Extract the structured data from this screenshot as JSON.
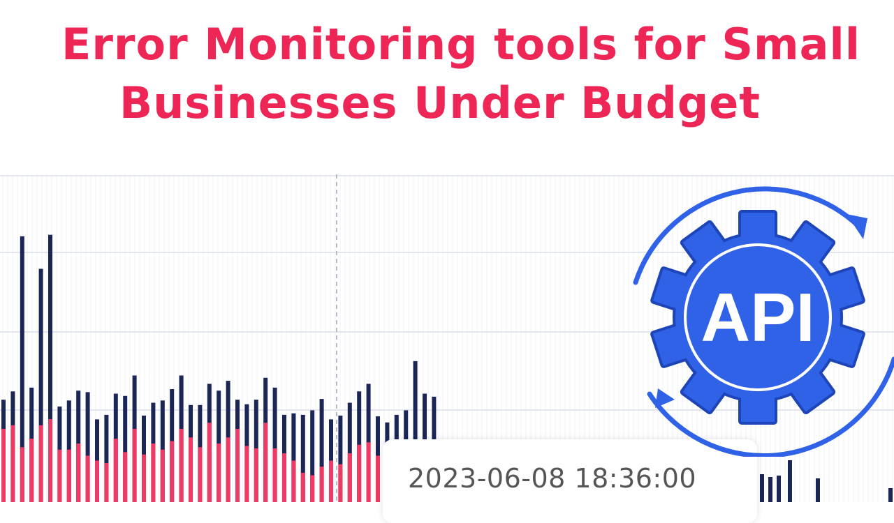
{
  "title": {
    "line1": "Error Monitoring tools for Small",
    "line2": "Businesses Under Budget"
  },
  "colors": {
    "title": "#ee2656",
    "bar_total": "#1b2657",
    "bar_error": "#ee3a64",
    "badge": "#2f62e6"
  },
  "tooltip": {
    "timestamp": "2023-06-08 18:36:00"
  },
  "badge": {
    "label": "API",
    "icon": "gear-sync-icon"
  },
  "chart_data": {
    "type": "bar",
    "stacked": true,
    "grid": true,
    "series": [
      {
        "values": [
          60,
          63,
          45,
          52,
          63,
          68,
          43,
          43,
          48,
          38,
          34,
          32,
          52,
          41,
          60,
          39,
          48,
          43,
          50,
          60,
          53,
          45,
          65,
          48,
          53,
          60,
          46,
          44,
          65,
          44,
          40,
          34,
          24,
          22,
          29,
          34,
          31,
          40,
          47,
          49,
          38,
          22,
          24,
          22,
          24,
          19,
          26
        ]
      },
      {
        "values": [
          0,
          0,
          215,
          0,
          138,
          210,
          0,
          0,
          0,
          0,
          0,
          0,
          0,
          0,
          0,
          0,
          0,
          0,
          0,
          0,
          0,
          0,
          0,
          0,
          0,
          0,
          0,
          0,
          0,
          0,
          0,
          0,
          0,
          0,
          0,
          0,
          0,
          0,
          0,
          0,
          0,
          0,
          0,
          0,
          55,
          49,
          30
        ]
      }
    ]
  }
}
